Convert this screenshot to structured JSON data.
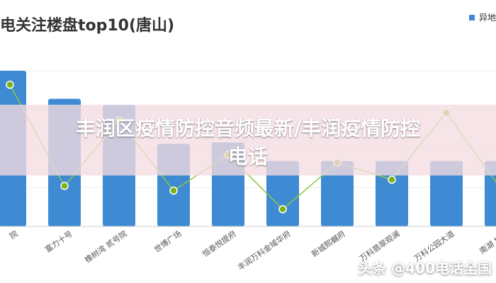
{
  "chart_data": {
    "type": "bar",
    "title": "电关注楼盘top10(唐山)",
    "legend": [
      "异地"
    ],
    "categories": [
      "院",
      "富力十号",
      "橡树湾 贰号院",
      "世博广场",
      "恒泰悦提府",
      "丰润万科金域华府",
      "新城熙樾府",
      "万科翡翠观澜",
      "万科公园大道",
      "南湖 橡树"
    ],
    "series": [
      {
        "name": "异地",
        "type": "bar",
        "values": [
          100,
          82,
          78,
          53,
          54,
          42,
          42,
          42,
          42,
          42
        ]
      },
      {
        "name": "",
        "type": "line",
        "values": [
          91,
          26,
          68,
          23,
          46,
          11,
          41,
          30,
          73,
          24
        ]
      }
    ],
    "ylim": [
      0,
      100
    ],
    "colors": {
      "bar": "#3f8bd3",
      "line": "#8dc63f",
      "line_marker": "#7ab317"
    }
  },
  "overlay": {
    "title_line1": "丰润区疫情防控音频最新/丰润疫情防控",
    "title_line2": "电话"
  },
  "watermark": "头条 @400电话全国"
}
